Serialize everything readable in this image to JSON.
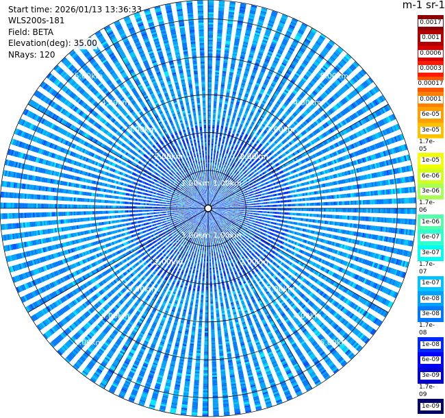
{
  "header": {
    "start_time": "Start time: 2026/01/13 13:36:33",
    "instrument": "WLS200s-181",
    "field": "Field: BETA",
    "elevation": "Elevation(deg): 35.00",
    "nrays": "NRays: 120"
  },
  "colorbar": {
    "unit": "m-1 sr-1",
    "labels": [
      "0.0017",
      "0.001",
      "0.0006",
      "0.0003",
      "0.00017",
      "0.0001",
      "6e-05",
      "3e-05",
      "1.7e-05",
      "1e-05",
      "6e-06",
      "3e-06",
      "1.7e-06",
      "1e-06",
      "6e-07",
      "3e-07",
      "1.7e-07",
      "1e-07",
      "6e-08",
      "3e-08",
      "1.7e-08",
      "1e-08",
      "6e-09",
      "3e-09",
      "1.7e-09",
      "1e-09"
    ],
    "colors": [
      "#8b0000",
      "#b00000",
      "#d80000",
      "#ff1a00",
      "#ff5500",
      "#ff8000",
      "#ffa000",
      "#ffc000",
      "#ffe000",
      "#f2ff00",
      "#d0ff20",
      "#aaff55",
      "#80ff80",
      "#55ffaa",
      "#30ffd0",
      "#00ffee",
      "#00e8ff",
      "#00c4ff",
      "#00a0ff",
      "#0078ff",
      "#0050ff",
      "#0028ff",
      "#0000ff",
      "#0000cc",
      "#000099",
      "#000066"
    ]
  },
  "chart_data": {
    "type": "ppi",
    "field": "BETA",
    "elevation_deg": 35.0,
    "n_rays": 120,
    "max_range_km": 5.5,
    "range_rings_km": [
      1,
      2,
      3,
      4,
      5
    ],
    "ring_labels": [
      "1.00km",
      "2.00km",
      "3.00km",
      "4.00km",
      "5.00km"
    ],
    "grid": true,
    "typical_values": {
      "center_to_2km": "1e-08 to 3e-08",
      "2km_to_edge": "3e-08 to 1.7e-07"
    }
  }
}
